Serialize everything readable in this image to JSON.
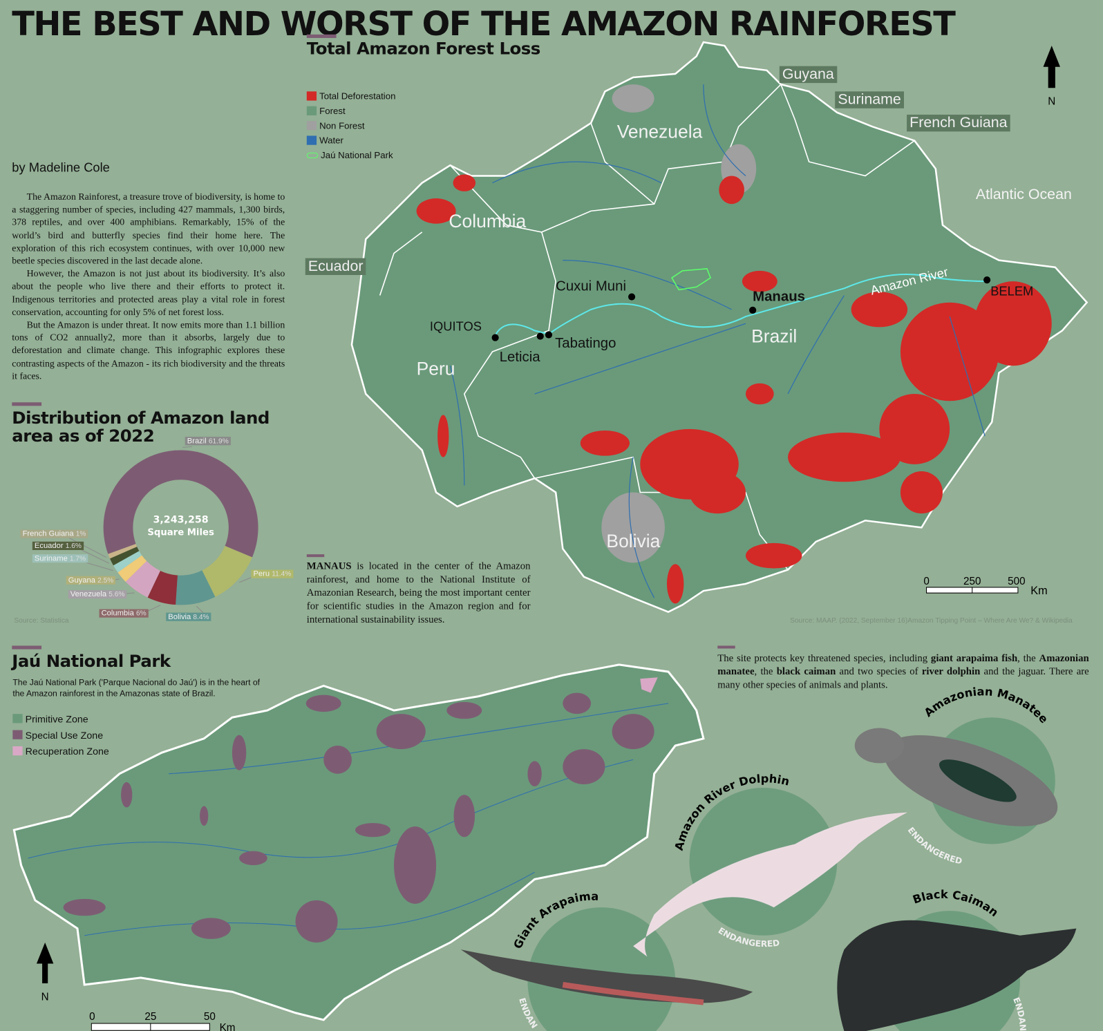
{
  "header": {
    "title": "THE BEST AND WORST OF THE AMAZON RAINFOREST",
    "byline": "by Madeline Cole"
  },
  "intro": [
    "The Amazon Rainforest, a treasure trove of biodiversity, is home to a staggering number of species, including 427 mammals, 1,300 birds, 378 reptiles, and over 400 amphibians. Remarkably, 15% of the world’s bird and butterfly species find their home here. The exploration of this rich ecosystem continues, with over 10,000 new beetle species discovered in the last decade alone.",
    "However, the Amazon is not just about its biodiversity. It’s also about the people who live there and their efforts to protect it. Indigenous territories and protected areas play a vital role in forest conservation, accounting for only 5% of net forest loss.",
    "But the Amazon is under threat. It now emits more than 1.1 billion tons of CO2 annually2, more than it absorbs, largely due to deforestation and climate change. This infographic explores these contrasting aspects of the Amazon - its rich biodiversity and the threats it faces."
  ],
  "chart_data": {
    "type": "pie",
    "title": "Distribution of Amazon land area as of 2022",
    "center_value": "3,243,258",
    "center_unit": "Square Miles",
    "source": "Source: Statistica",
    "categories": [
      "Brazil",
      "Peru",
      "Bolivia",
      "Columbia",
      "Venezuela",
      "Guyana",
      "Suriname",
      "Ecuador",
      "French Guiana"
    ],
    "values": [
      61.9,
      11.4,
      8.4,
      6,
      5.6,
      2.5,
      1.7,
      1.6,
      1
    ],
    "value_labels": [
      "61.9%",
      "11.4%",
      "8.4%",
      "6%",
      "5.6%",
      "2.5%",
      "1.7%",
      "1.6%",
      "1%"
    ],
    "colors": [
      "#7d5c73",
      "#b0b86a",
      "#5f9690",
      "#8e2f3a",
      "#d4a5c0",
      "#f0cb78",
      "#9dd0c8",
      "#45522f",
      "#c9b48a"
    ],
    "donut": true
  },
  "map": {
    "title": "Total Amazon Forest Loss",
    "legend": [
      {
        "label": "Total Deforestation",
        "color": "#d32a27"
      },
      {
        "label": "Forest",
        "color": "#6a9a7a"
      },
      {
        "label": "Non Forest",
        "color": "#a0a0a0"
      },
      {
        "label": "Water",
        "color": "#2f6eb0"
      },
      {
        "label": "Jaú National Park",
        "color": "#5dff6a"
      }
    ],
    "countries": {
      "venezuela": "Venezuela",
      "columbia": "Columbia",
      "peru": "Peru",
      "brazil": "Brazil",
      "bolivia": "Bolivia"
    },
    "tags": {
      "guyana": "Guyana",
      "suriname": "Suriname",
      "french_guiana": "French Guiana",
      "ecuador": "Ecuador"
    },
    "ocean": "Atlantic Ocean",
    "river": "Amazon River",
    "cities": {
      "manaus": "Manaus",
      "belem": "BELEM",
      "iquitos": "IQUITOS",
      "leticia": "Leticia",
      "tabatingo": "Tabatingo",
      "cuxui": "Cuxui Muni"
    },
    "north": "N",
    "scale": {
      "ticks": [
        "0",
        "250",
        "500"
      ],
      "unit": "Km"
    },
    "manaus_bold": "MANAUS",
    "manaus_text": " is located in the center of the Amazon rainforest, and home to the National Institute of Amazonian Research, being the most important center for scientific studies in the Amazon region and for international sustainability issues.",
    "source": "Source: MAAP. (2022, September 16)Amazon Tipping Point – Where Are We? & Wikipedia"
  },
  "park": {
    "title": "Jaú National Park",
    "description": "The Jaú National Park ('Parque Nacional do Jaú') is in the heart of the Amazon rainforest in the Amazonas state of Brazil.",
    "legend": [
      {
        "label": "Primitive Zone",
        "color": "#6a9a7a"
      },
      {
        "label": "Special Use Zone",
        "color": "#7d5c73"
      },
      {
        "label": "Recuperation Zone",
        "color": "#d9a8c6"
      }
    ],
    "north": "N",
    "scale": {
      "ticks": [
        "0",
        "25",
        "50"
      ],
      "unit": "Km"
    }
  },
  "species": {
    "intro": {
      "t1": "The site protects key threatened species, including ",
      "b1": "giant arapaima fish",
      "t2": ", the ",
      "b2": "Amazonian manatee",
      "t3": ", the ",
      "b3": "black caiman",
      "t4": " and two species of ",
      "b4": "river dolphin",
      "t5": " and the jaguar. There are many other species of animals and plants."
    },
    "animals": [
      {
        "name": "Amazonian Manatee",
        "status": "ENDANGERED"
      },
      {
        "name": "Amazon River Dolphin",
        "status": "ENDANGERED"
      },
      {
        "name": "Giant Arapaima",
        "status": "ENDANGERED"
      },
      {
        "name": "Black Caiman",
        "status": "ENDANGERED"
      }
    ]
  }
}
